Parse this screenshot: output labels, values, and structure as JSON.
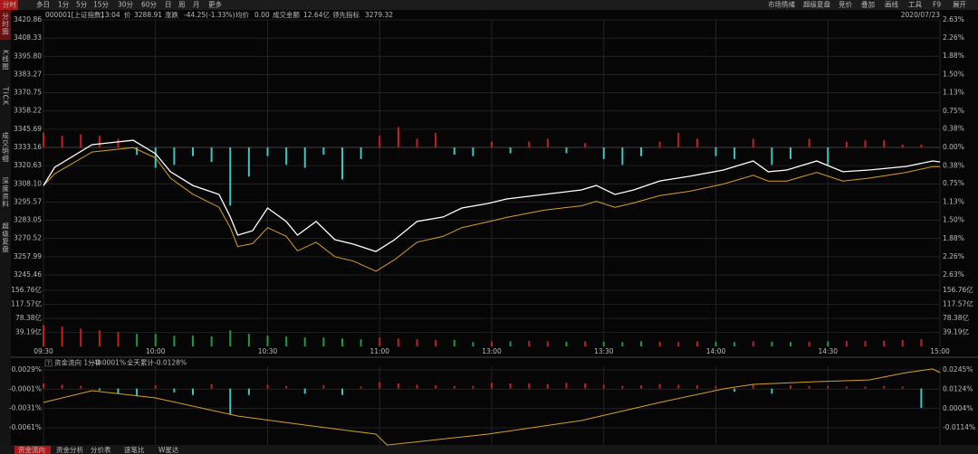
{
  "toolbar": {
    "tabs": [
      "分时",
      "多日",
      "1分",
      "5分",
      "15分",
      "30分",
      "60分",
      "日",
      "周",
      "月",
      "更多"
    ],
    "tools": [
      "市场情绪",
      "超级复盘",
      "竞价",
      "叠加",
      "画线",
      "工具",
      "F9",
      "展开"
    ]
  },
  "sidebar": [
    "分时图",
    "K线图",
    "TICK",
    "成交明细",
    "深度资料",
    "超级复盘"
  ],
  "info": {
    "code": "000001[上证指数]",
    "time": "13:04",
    "price_label": "价",
    "price": "3288.91",
    "change_label": "涨跌",
    "change": "-44.25(-1.33%)",
    "avg_label": "均价",
    "avg": "0.00",
    "amount_label": "成交金额",
    "amount": "12.64亿",
    "lead_label": "领先指标",
    "lead": "3279.32",
    "date": "2020/07/23"
  },
  "main": {
    "prev_close": 3333.16,
    "ylim": [
      3245.46,
      3420.86
    ],
    "yticks": [
      3420.86,
      3408.33,
      {
        "value": 3395.8,
        "label": "3395.80"
      },
      3383.27,
      3370.75,
      3358.22,
      3345.69,
      3333.16,
      3320.63,
      {
        "value": 3308.1,
        "label": "3308.10"
      },
      3295.57,
      3283.05,
      3270.52,
      3257.99,
      3245.46
    ],
    "y2lim": [
      -2.63,
      2.63
    ],
    "y2ticks": [
      {
        "value": 2.63,
        "label": "2.63%"
      },
      {
        "value": 2.26,
        "label": "2.26%"
      },
      {
        "value": 1.88,
        "label": "1.88%"
      },
      {
        "value": 1.5,
        "label": "1.50%"
      },
      {
        "value": 1.13,
        "label": "1.13%"
      },
      {
        "value": 0.75,
        "label": "0.75%"
      },
      {
        "value": 0.38,
        "label": "0.38%"
      },
      {
        "value": 0,
        "label": "0.00%"
      },
      {
        "value": -0.38,
        "label": "0.38%"
      },
      {
        "value": -0.75,
        "label": "0.75%"
      },
      {
        "value": -1.13,
        "label": "1.13%"
      },
      {
        "value": -1.5,
        "label": "1.50%"
      },
      {
        "value": -1.88,
        "label": "1.88%"
      },
      {
        "value": -2.26,
        "label": "2.26%"
      },
      {
        "value": -2.63,
        "label": "2.63%"
      }
    ],
    "xlim": [
      0,
      240
    ],
    "xticks": [
      {
        "value": 0,
        "label": "09:30"
      },
      {
        "value": 30,
        "label": "10:00"
      },
      {
        "value": 60,
        "label": "10:30"
      },
      {
        "value": 90,
        "label": "11:00"
      },
      {
        "value": 120,
        "label": "13:00"
      },
      {
        "value": 150,
        "label": "13:30"
      },
      {
        "value": 180,
        "label": "14:00"
      },
      {
        "value": 210,
        "label": "14:30"
      },
      {
        "value": 240,
        "label": "15:00"
      }
    ],
    "x": [
      0,
      3,
      13,
      24,
      30,
      34,
      40,
      47,
      50,
      52,
      56,
      60,
      65,
      68,
      73,
      78,
      83,
      89,
      94,
      100,
      107,
      112,
      119,
      124,
      134,
      144,
      148,
      153,
      158,
      165,
      173,
      182,
      190,
      194,
      199,
      207,
      214,
      221,
      231,
      238,
      240
    ],
    "price": [
      3307.0,
      3319.5,
      3335.0,
      3338.1,
      3328.8,
      3316.4,
      3307.0,
      3300.8,
      3285.3,
      3272.8,
      3275.9,
      3291.5,
      3282.2,
      3272.8,
      3282.2,
      3269.7,
      3266.6,
      3261.6,
      3269.7,
      3282.2,
      3285.3,
      3291.5,
      3294.6,
      3297.7,
      3300.8,
      3303.9,
      3307.0,
      3300.8,
      3303.9,
      3310.1,
      3313.3,
      3317.6,
      3323.8,
      3316.4,
      3317.6,
      3323.8,
      3316.4,
      3317.6,
      3320.1,
      3323.8,
      3323.2
    ],
    "avg": [
      3307,
      3315,
      3330,
      3333,
      3326,
      3312,
      3301,
      3292,
      3278,
      3265,
      3267,
      3278,
      3272,
      3262,
      3268,
      3258,
      3255,
      3248,
      3256,
      3268,
      3272,
      3278,
      3282,
      3285,
      3290,
      3293,
      3296,
      3292,
      3295,
      3300,
      3303,
      3308,
      3314,
      3310,
      3310,
      3316,
      3310,
      3312,
      3316,
      3320,
      3320
    ],
    "bar_x": [
      0,
      5,
      10,
      15,
      20,
      25,
      30,
      35,
      40,
      45,
      50,
      55,
      60,
      65,
      70,
      75,
      80,
      85,
      90,
      95,
      100,
      105,
      110,
      115,
      120,
      125,
      130,
      135,
      140,
      145,
      150,
      155,
      160,
      165,
      170,
      175,
      180,
      185,
      190,
      195,
      200,
      205,
      210,
      215,
      220,
      225,
      230,
      235
    ],
    "bars": [
      10,
      8,
      9,
      8,
      6,
      -5,
      -14,
      -12,
      -6,
      -10,
      -40,
      -20,
      -6,
      -12,
      -14,
      -5,
      -22,
      -8,
      8,
      14,
      6,
      10,
      -5,
      -6,
      4,
      -4,
      4,
      6,
      -4,
      3,
      -8,
      -12,
      -6,
      4,
      10,
      6,
      -6,
      -8,
      6,
      -12,
      -8,
      6,
      -12,
      4,
      5,
      5,
      2,
      2
    ]
  },
  "volume": {
    "ylim": [
      0,
      156.76
    ],
    "yticks": [
      {
        "value": 156.76,
        "label": "156.76亿"
      },
      {
        "value": 117.57,
        "label": "117.57亿"
      },
      {
        "value": 78.38,
        "label": "78.38亿"
      },
      {
        "value": 39.19,
        "label": "39.19亿"
      }
    ],
    "values": [
      60,
      55,
      50,
      45,
      40,
      35,
      35,
      30,
      30,
      28,
      45,
      35,
      30,
      28,
      25,
      25,
      22,
      20,
      25,
      22,
      20,
      18,
      18,
      12,
      14,
      14,
      15,
      14,
      13,
      14,
      13,
      12,
      14,
      13,
      12,
      14,
      13,
      12,
      14,
      13,
      12,
      13,
      14,
      15,
      15,
      16,
      18,
      20
    ]
  },
  "flow": {
    "title": "资金流向 1分钟",
    "minute": "-0.0001%",
    "total_label": "全天累计",
    "total": "-0.0128%",
    "ylim": [
      -0.0061,
      0.0029
    ],
    "yticks": [
      {
        "value": 0.0029,
        "label": "0.0029%"
      },
      {
        "value": -0.0001,
        "label": "-0.0001%"
      },
      {
        "value": -0.0031,
        "label": "-0.0031%"
      },
      {
        "value": -0.0061,
        "label": "-0.0061%"
      }
    ],
    "y2lim": [
      -0.0114,
      0.0245
    ],
    "y2ticks": [
      {
        "value": 0.0245,
        "label": "0.0245%"
      },
      {
        "value": 0.0124,
        "label": "0.0124%"
      },
      {
        "value": 0.0004,
        "label": "0.0004%"
      },
      {
        "value": -0.0114,
        "label": "-0.0114%"
      }
    ],
    "bar_values": [
      0.0008,
      0.0006,
      0.0004,
      -0.0003,
      -0.0008,
      -0.0012,
      0.0005,
      -0.0006,
      -0.001,
      0.0007,
      -0.004,
      -0.001,
      0.0006,
      0.0004,
      -0.0008,
      0.0005,
      -0.001,
      0.0003,
      0.001,
      0.0008,
      0.0006,
      0.0005,
      0.0004,
      0.0004,
      0.0009,
      0.0008,
      0.0008,
      0.0007,
      0.0009,
      0.0008,
      0.0006,
      0.0004,
      0.0005,
      0.0007,
      0.0006,
      0.0005,
      0.0004,
      -0.0005,
      0.0006,
      -0.0008,
      0.0005,
      0.0004,
      0.0004,
      0.0003,
      0.0003,
      0.0004,
      0.0003,
      -0.003
    ],
    "line_x": [
      0,
      13,
      30,
      52,
      70,
      89,
      92,
      119,
      144,
      165,
      182,
      190,
      207,
      221,
      231,
      238,
      240
    ],
    "line": [
      0.0043,
      0.0116,
      0.0071,
      -0.0041,
      -0.0097,
      -0.0153,
      -0.0221,
      -0.0153,
      -0.0069,
      0.0043,
      0.0127,
      0.0155,
      0.0172,
      0.0183,
      0.0228,
      0.0251,
      0.0228
    ]
  },
  "bottom_tabs": [
    "资金流向",
    "资金分析",
    "分价表",
    "逐笔比",
    "W星达"
  ]
}
